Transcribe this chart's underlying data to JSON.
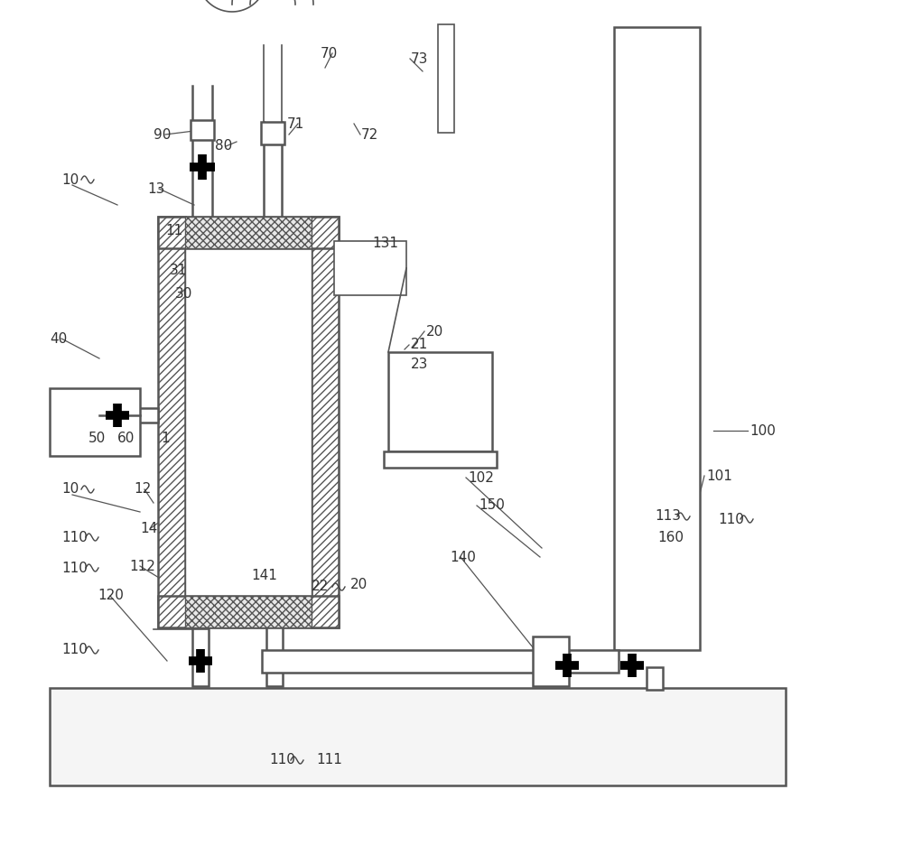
{
  "bg_color": "#ffffff",
  "line_color": "#555555",
  "black": "#000000",
  "fig_width": 10.0,
  "fig_height": 9.57
}
